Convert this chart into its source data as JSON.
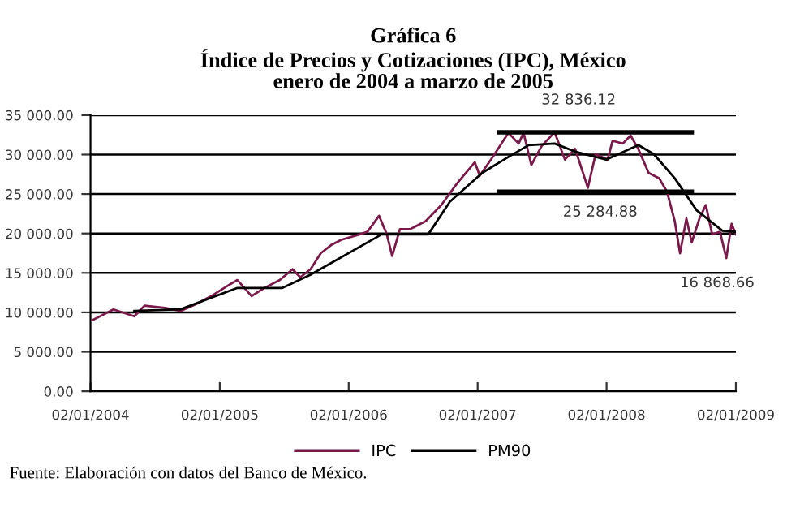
{
  "chart_data": {
    "type": "line",
    "title": "Gráfica 6\nÍndice de Precios y Cotizaciones (IPC), México\nenero de 2004 a marzo de 2005",
    "series": [
      {
        "name": "IPC",
        "color": "#7b1a4a",
        "x": [
          "2004-01-08",
          "2004-03-07",
          "2004-05-05",
          "2004-06-03",
          "2004-07-31",
          "2004-09-13",
          "2004-10-27",
          "2004-12-09",
          "2005-01-26",
          "2005-02-21",
          "2005-04-02",
          "2005-05-08",
          "2005-06-21",
          "2005-07-27",
          "2005-08-18",
          "2005-09-16",
          "2005-10-15",
          "2005-11-13",
          "2005-12-12",
          "2006-02-02",
          "2006-02-24",
          "2006-03-29",
          "2006-04-20",
          "2006-05-05",
          "2006-05-27",
          "2006-06-25",
          "2006-08-08",
          "2006-09-21",
          "2006-11-04",
          "2006-12-25",
          "2007-01-08",
          "2007-02-14",
          "2007-03-30",
          "2007-04-28",
          "2007-05-12",
          "2007-06-03",
          "2007-07-02",
          "2007-08-08",
          "2007-09-06",
          "2007-10-05",
          "2007-11-10",
          "2007-12-02",
          "2008-01-05",
          "2008-01-19",
          "2008-02-17",
          "2008-03-10",
          "2008-04-01",
          "2008-04-30",
          "2008-05-30",
          "2008-06-21",
          "2008-07-13",
          "2008-07-28",
          "2008-08-15",
          "2008-08-30",
          "2008-09-21",
          "2008-10-09",
          "2008-10-27",
          "2008-11-18",
          "2008-12-06",
          "2008-12-21",
          "2009-01-02"
        ],
        "values": [
          9020,
          10380,
          9500,
          10850,
          10580,
          10180,
          11050,
          12070,
          13430,
          14100,
          12070,
          13090,
          14100,
          15470,
          14440,
          15470,
          17500,
          18520,
          19200,
          19880,
          20210,
          22240,
          19880,
          17150,
          20550,
          20550,
          21570,
          23600,
          26310,
          29030,
          27330,
          29710,
          32760,
          31400,
          32760,
          28690,
          31070,
          32836.12,
          29370,
          30730,
          25790,
          30060,
          29370,
          31750,
          31400,
          32420,
          30710,
          27680,
          27000,
          25300,
          21570,
          17500,
          21900,
          18860,
          21910,
          23600,
          19880,
          20210,
          16868.66,
          21230,
          19880
        ]
      },
      {
        "name": "PM90",
        "color": "#000000",
        "x": [
          "2004-05-05",
          "2004-09-13",
          "2005-02-21",
          "2005-06-27",
          "2005-09-16",
          "2006-04-05",
          "2006-08-15",
          "2006-10-15",
          "2007-01-15",
          "2007-03-30",
          "2007-05-26",
          "2007-08-08",
          "2007-10-05",
          "2008-01-01",
          "2008-04-01",
          "2008-05-15",
          "2008-07-13",
          "2008-09-13",
          "2008-11-25",
          "2009-01-02"
        ],
        "values": [
          10180,
          10390,
          13100,
          13090,
          14780,
          19880,
          19880,
          24000,
          27680,
          29710,
          31200,
          31400,
          30380,
          29370,
          31200,
          30050,
          27000,
          22940,
          20350,
          20200
        ]
      },
      {
        "color": "#000000",
        "x": [
          "2007-03-04",
          "2008-08-30"
        ],
        "values": [
          32836.12,
          32836.12
        ]
      },
      {
        "color": "#000000",
        "x": [
          "2007-03-04",
          "2008-08-30"
        ],
        "values": [
          25284.88,
          25284.88
        ]
      }
    ],
    "annotations": [
      {
        "text": "32 836.12",
        "x": "2007-10-15",
        "y": 32836.12
      },
      {
        "text": "25 284.88",
        "x": "2007-12-15",
        "y": 25284.88
      },
      {
        "text": "16 868.66",
        "x": "2008-11-10",
        "y": 16868.66
      },
      "Fuente: Elaboración con datos del Banco de México."
    ],
    "ylim": [
      0,
      35000
    ],
    "yticks": [
      {
        "value": 0,
        "label": "0.00"
      },
      {
        "value": 5000,
        "label": "5 000.00"
      },
      {
        "value": 10000,
        "label": "10 000.00"
      },
      {
        "value": 15000,
        "label": "15 000.00"
      },
      {
        "value": 20000,
        "label": "20 000.00"
      },
      {
        "value": 25000,
        "label": "25 000.00"
      },
      {
        "value": 30000,
        "label": "30 000.00"
      },
      {
        "value": 35000,
        "label": "35 000.00"
      }
    ],
    "xlim": [
      "2004-01-02",
      "2009-01-02"
    ],
    "xticks": [
      {
        "value": "2004-01-02",
        "label": "02/01/2004"
      },
      {
        "value": "2005-01-02",
        "label": "02/01/2005"
      },
      {
        "value": "2006-01-02",
        "label": "02/01/2006"
      },
      {
        "value": "2007-01-02",
        "label": "02/01/2007"
      },
      {
        "value": "2008-01-02",
        "label": "02/01/2008"
      },
      {
        "value": "2009-01-02",
        "label": "02/01/2009"
      }
    ],
    "grid": "y",
    "legend": "bottom"
  }
}
